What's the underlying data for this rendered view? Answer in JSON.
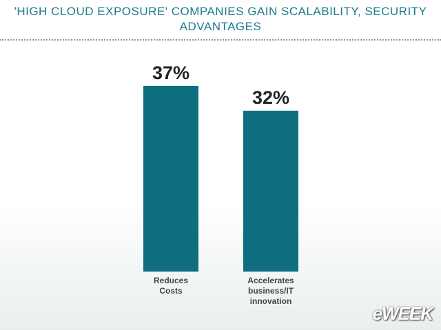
{
  "chart_data": {
    "type": "bar",
    "title": "'HIGH CLOUD EXPOSURE' COMPANIES GAIN SCALABILITY, SECURITY ADVANTAGES",
    "categories": [
      "Reduces Costs",
      "Accelerates business/IT innovation"
    ],
    "values": [
      37,
      32
    ],
    "value_labels": [
      "37%",
      "32%"
    ],
    "color": "#0e6e80"
  },
  "logo": "eWEEK"
}
